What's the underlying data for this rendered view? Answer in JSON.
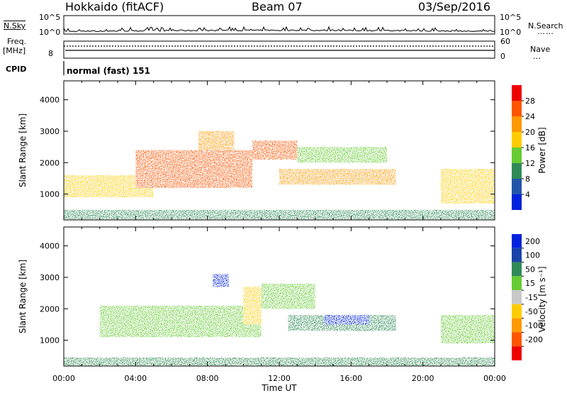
{
  "header": {
    "station": "Hokkaido (fitACF)",
    "beam": "Beam 07",
    "date": "03/Sep/2016"
  },
  "strips": {
    "nsky_label": "N.Sky",
    "nsearch_label": "N.Search",
    "noise_ticks": [
      "10^5",
      "10^0"
    ],
    "freq_label": "Freq.",
    "freq_unit": "[MHz]",
    "freq_ticks": [
      "8"
    ],
    "nave_label": "Nave",
    "nave_ticks": [
      "60",
      "0"
    ],
    "cpid_label": "CPID",
    "cpid_value": "normal (fast) 151"
  },
  "colors": {
    "power": [
      "#0022dd",
      "#2255aa",
      "#2e8b57",
      "#66cc33",
      "#ffcc00",
      "#ff9900",
      "#ff5500",
      "#ee0000"
    ],
    "velocity": [
      "#0022dd",
      "#1a44aa",
      "#2e8b57",
      "#66cc33",
      "#c8c8c8",
      "#ffcc00",
      "#ff9900",
      "#ff5500",
      "#ee0000"
    ]
  },
  "chart_data": [
    {
      "type": "heatmap",
      "name": "power",
      "xlabel": "",
      "ylabel": "Slant Range [km]",
      "xlim": [
        "00:00",
        "24:00"
      ],
      "ylim": [
        180,
        4600
      ],
      "yticks": [
        "1000",
        "2000",
        "3000",
        "4000"
      ],
      "colorbar_label": "Power [dB]",
      "colorbar_ticks": [
        "4",
        "8",
        "12",
        "16",
        "20",
        "24",
        "28"
      ],
      "features": [
        {
          "t_start": 0.0,
          "t_end": 24.0,
          "range_min": 200,
          "range_max": 500,
          "value": 10
        },
        {
          "t_start": 0.0,
          "t_end": 5.0,
          "range_min": 900,
          "range_max": 1600,
          "value": 18
        },
        {
          "t_start": 4.0,
          "t_end": 10.5,
          "range_min": 1200,
          "range_max": 2400,
          "value": 26
        },
        {
          "t_start": 7.5,
          "t_end": 9.5,
          "range_min": 2400,
          "range_max": 3000,
          "value": 22
        },
        {
          "t_start": 10.5,
          "t_end": 13.0,
          "range_min": 2100,
          "range_max": 2700,
          "value": 26
        },
        {
          "t_start": 12.0,
          "t_end": 18.5,
          "range_min": 1300,
          "range_max": 1800,
          "value": 22
        },
        {
          "t_start": 13.0,
          "t_end": 18.0,
          "range_min": 2000,
          "range_max": 2500,
          "value": 12
        },
        {
          "t_start": 21.0,
          "t_end": 24.0,
          "range_min": 700,
          "range_max": 1800,
          "value": 16
        }
      ]
    },
    {
      "type": "heatmap",
      "name": "velocity",
      "xlabel": "Time UT",
      "ylabel": "Slant Range [km]",
      "xlim": [
        "00:00",
        "24:00"
      ],
      "xticks": [
        "00:00",
        "04:00",
        "08:00",
        "12:00",
        "16:00",
        "20:00",
        "00:00"
      ],
      "ylim": [
        180,
        4600
      ],
      "yticks": [
        "1000",
        "2000",
        "3000",
        "4000"
      ],
      "colorbar_label": "Velocity [m s⁻¹]",
      "colorbar_ticks": [
        "200",
        "100",
        "50",
        "15",
        "-15",
        "-50",
        "-100",
        "-200"
      ],
      "features": [
        {
          "t_start": 0.0,
          "t_end": 24.0,
          "range_min": 200,
          "range_max": 450,
          "value": 40
        },
        {
          "t_start": 2.0,
          "t_end": 11.0,
          "range_min": 1100,
          "range_max": 2100,
          "value": 0
        },
        {
          "t_start": 8.3,
          "t_end": 9.2,
          "range_min": 2700,
          "range_max": 3100,
          "value": 220
        },
        {
          "t_start": 10.0,
          "t_end": 11.0,
          "range_min": 1500,
          "range_max": 2700,
          "value": -40
        },
        {
          "t_start": 11.0,
          "t_end": 14.0,
          "range_min": 2000,
          "range_max": 2800,
          "value": 0
        },
        {
          "t_start": 12.5,
          "t_end": 18.5,
          "range_min": 1300,
          "range_max": 1800,
          "value": 60
        },
        {
          "t_start": 14.5,
          "t_end": 17.0,
          "range_min": 1500,
          "range_max": 1800,
          "value": 150
        },
        {
          "t_start": 21.0,
          "t_end": 24.0,
          "range_min": 900,
          "range_max": 1800,
          "value": 0
        }
      ]
    }
  ]
}
